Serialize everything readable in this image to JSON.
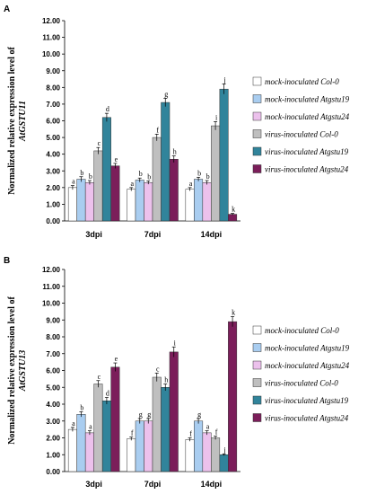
{
  "chart_data": [
    {
      "type": "bar",
      "panel_label": "A",
      "ylabel_line1": "Normalized relative expression level of",
      "ylabel_line2": "AtGSTU11",
      "ylim": [
        0,
        12
      ],
      "ytick_step": 1,
      "ytick_labels": [
        "0.00",
        "1.00",
        "2.00",
        "3.00",
        "4.00",
        "5.00",
        "6.00",
        "7.00",
        "8.00",
        "9.00",
        "10.00",
        "11.00",
        "12.00"
      ],
      "categories": [
        "3dpi",
        "7dpi",
        "14dpi"
      ],
      "series": [
        {
          "name": "mock-inoculated Col-0",
          "color": "#ffffff",
          "values": [
            2.0,
            1.9,
            1.9
          ],
          "errors": [
            0.12,
            0.1,
            0.1
          ],
          "letters": [
            "a",
            "a",
            "a"
          ]
        },
        {
          "name": "mock-inoculated Atgstu19",
          "color": "#a9cdf0",
          "values": [
            2.5,
            2.45,
            2.5
          ],
          "errors": [
            0.15,
            0.12,
            0.12
          ],
          "letters": [
            "b",
            "b",
            "b"
          ]
        },
        {
          "name": "mock-inoculated Atgstu24",
          "color": "#ecc1ec",
          "values": [
            2.3,
            2.3,
            2.3
          ],
          "errors": [
            0.12,
            0.1,
            0.12
          ],
          "letters": [
            "b",
            "b",
            "b"
          ]
        },
        {
          "name": "virus-inoculated Col-0",
          "color": "#bfbfbf",
          "values": [
            4.2,
            5.0,
            5.7
          ],
          "errors": [
            0.2,
            0.2,
            0.25
          ],
          "letters": [
            "c",
            "f",
            "i"
          ]
        },
        {
          "name": "virus-inoculated Atgstu19",
          "color": "#31849b",
          "values": [
            6.2,
            7.1,
            7.9
          ],
          "errors": [
            0.25,
            0.25,
            0.3
          ],
          "letters": [
            "d",
            "g",
            "j"
          ]
        },
        {
          "name": "virus-inoculated Atgstu24",
          "color": "#7b1e5a",
          "values": [
            3.3,
            3.7,
            0.4
          ],
          "errors": [
            0.15,
            0.2,
            0.05
          ],
          "letters": [
            "e",
            "h",
            "k"
          ]
        }
      ]
    },
    {
      "type": "bar",
      "panel_label": "B",
      "ylabel_line1": "Normalized relative expression level of",
      "ylabel_line2": "AtGSTU13",
      "ylim": [
        0,
        12
      ],
      "ytick_step": 1,
      "ytick_labels": [
        "0.00",
        "1.00",
        "2.00",
        "3.00",
        "4.00",
        "5.00",
        "6.00",
        "7.00",
        "8.00",
        "9.00",
        "10.00",
        "11.00",
        "12.00"
      ],
      "categories": [
        "3dpi",
        "7dpi",
        "14dpi"
      ],
      "series": [
        {
          "name": "mock-inoculated Col-0",
          "color": "#ffffff",
          "values": [
            2.5,
            1.95,
            1.9
          ],
          "errors": [
            0.12,
            0.1,
            0.1
          ],
          "letters": [
            "a",
            "f",
            "f"
          ]
        },
        {
          "name": "mock-inoculated Atgstu19",
          "color": "#a9cdf0",
          "values": [
            3.4,
            3.0,
            3.0
          ],
          "errors": [
            0.15,
            0.15,
            0.15
          ],
          "letters": [
            "b",
            "g",
            "g"
          ]
        },
        {
          "name": "mock-inoculated Atgstu24",
          "color": "#ecc1ec",
          "values": [
            2.3,
            3.0,
            2.3
          ],
          "errors": [
            0.12,
            0.15,
            0.12
          ],
          "letters": [
            "a",
            "g",
            "a"
          ]
        },
        {
          "name": "virus-inoculated Col-0",
          "color": "#bfbfbf",
          "values": [
            5.2,
            5.6,
            2.0
          ],
          "errors": [
            0.2,
            0.25,
            0.1
          ],
          "letters": [
            "c",
            "c",
            "f"
          ]
        },
        {
          "name": "virus-inoculated Atgstu19",
          "color": "#31849b",
          "values": [
            4.2,
            5.0,
            1.0
          ],
          "errors": [
            0.2,
            0.2,
            0.05
          ],
          "letters": [
            "d",
            "h",
            "j"
          ]
        },
        {
          "name": "virus-inoculated Atgstu24",
          "color": "#7b1e5a",
          "values": [
            6.2,
            7.1,
            8.9
          ],
          "errors": [
            0.25,
            0.3,
            0.3
          ],
          "letters": [
            "e",
            "i",
            "k"
          ]
        }
      ]
    }
  ]
}
